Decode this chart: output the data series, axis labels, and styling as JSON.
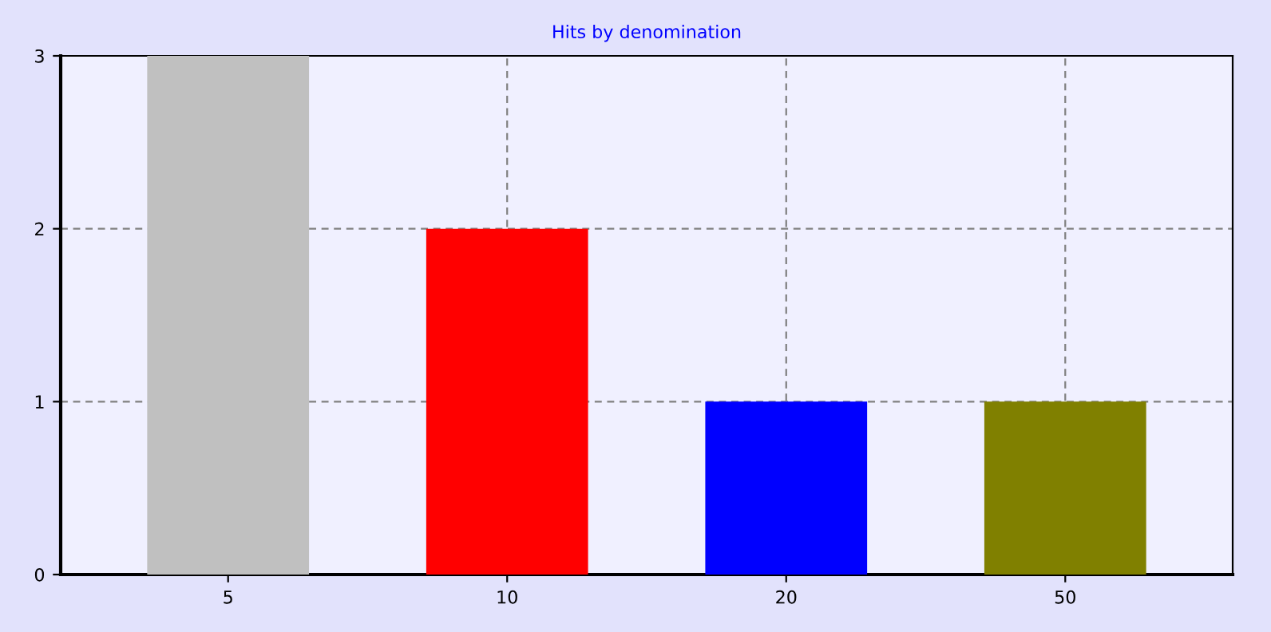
{
  "chart_data": {
    "type": "bar",
    "title": "Hits by denomination",
    "categories": [
      "5",
      "10",
      "20",
      "50"
    ],
    "values": [
      3,
      2,
      1,
      1
    ],
    "colors": [
      "#c0c0c0",
      "#ff0000",
      "#0000ff",
      "#808000"
    ],
    "ylim": [
      0,
      3
    ],
    "yticks": [
      0,
      1,
      2,
      3
    ],
    "grid": true
  }
}
